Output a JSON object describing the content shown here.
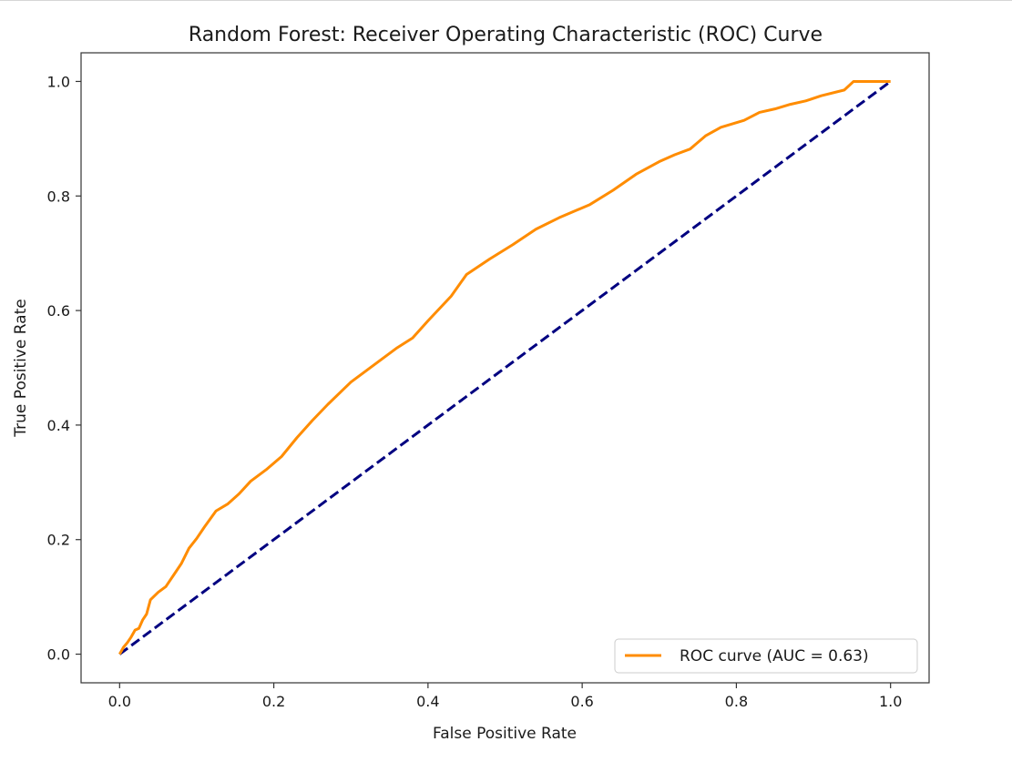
{
  "chart_data": {
    "type": "line",
    "title": "Random Forest: Receiver Operating Characteristic (ROC) Curve",
    "xlabel": "False Positive Rate",
    "ylabel": "True Positive Rate",
    "xlim": [
      -0.05,
      1.05
    ],
    "ylim": [
      -0.05,
      1.05
    ],
    "xticks": [
      0.0,
      0.2,
      0.4,
      0.6,
      0.8,
      1.0
    ],
    "yticks": [
      0.0,
      0.2,
      0.4,
      0.6,
      0.8,
      1.0
    ],
    "xtick_labels": [
      "0.0",
      "0.2",
      "0.4",
      "0.6",
      "0.8",
      "1.0"
    ],
    "ytick_labels": [
      "0.0",
      "0.2",
      "0.4",
      "0.6",
      "0.8",
      "1.0"
    ],
    "grid": false,
    "legend_position": "lower-right",
    "series": [
      {
        "name": "ROC curve (AUC = 0.63)",
        "color": "#ff8c00",
        "style": "solid",
        "points": [
          [
            0.0,
            0.0
          ],
          [
            0.005,
            0.012
          ],
          [
            0.01,
            0.02
          ],
          [
            0.015,
            0.03
          ],
          [
            0.02,
            0.042
          ],
          [
            0.025,
            0.045
          ],
          [
            0.03,
            0.06
          ],
          [
            0.035,
            0.07
          ],
          [
            0.04,
            0.095
          ],
          [
            0.05,
            0.108
          ],
          [
            0.06,
            0.118
          ],
          [
            0.07,
            0.138
          ],
          [
            0.08,
            0.158
          ],
          [
            0.09,
            0.185
          ],
          [
            0.1,
            0.202
          ],
          [
            0.11,
            0.222
          ],
          [
            0.125,
            0.25
          ],
          [
            0.14,
            0.262
          ],
          [
            0.155,
            0.28
          ],
          [
            0.17,
            0.302
          ],
          [
            0.19,
            0.322
          ],
          [
            0.21,
            0.345
          ],
          [
            0.23,
            0.378
          ],
          [
            0.25,
            0.408
          ],
          [
            0.27,
            0.436
          ],
          [
            0.3,
            0.475
          ],
          [
            0.33,
            0.505
          ],
          [
            0.36,
            0.535
          ],
          [
            0.38,
            0.552
          ],
          [
            0.4,
            0.582
          ],
          [
            0.43,
            0.625
          ],
          [
            0.45,
            0.663
          ],
          [
            0.48,
            0.69
          ],
          [
            0.51,
            0.715
          ],
          [
            0.54,
            0.742
          ],
          [
            0.57,
            0.762
          ],
          [
            0.61,
            0.785
          ],
          [
            0.64,
            0.81
          ],
          [
            0.67,
            0.838
          ],
          [
            0.7,
            0.86
          ],
          [
            0.72,
            0.872
          ],
          [
            0.74,
            0.882
          ],
          [
            0.76,
            0.905
          ],
          [
            0.78,
            0.92
          ],
          [
            0.81,
            0.932
          ],
          [
            0.83,
            0.946
          ],
          [
            0.85,
            0.952
          ],
          [
            0.87,
            0.96
          ],
          [
            0.89,
            0.966
          ],
          [
            0.91,
            0.975
          ],
          [
            0.94,
            0.985
          ],
          [
            0.952,
            1.0
          ],
          [
            0.97,
            1.0
          ],
          [
            1.0,
            1.0
          ]
        ]
      },
      {
        "name": "",
        "color": "#000080",
        "style": "dashed",
        "points": [
          [
            0.0,
            0.0
          ],
          [
            1.0,
            1.0
          ]
        ]
      }
    ]
  }
}
